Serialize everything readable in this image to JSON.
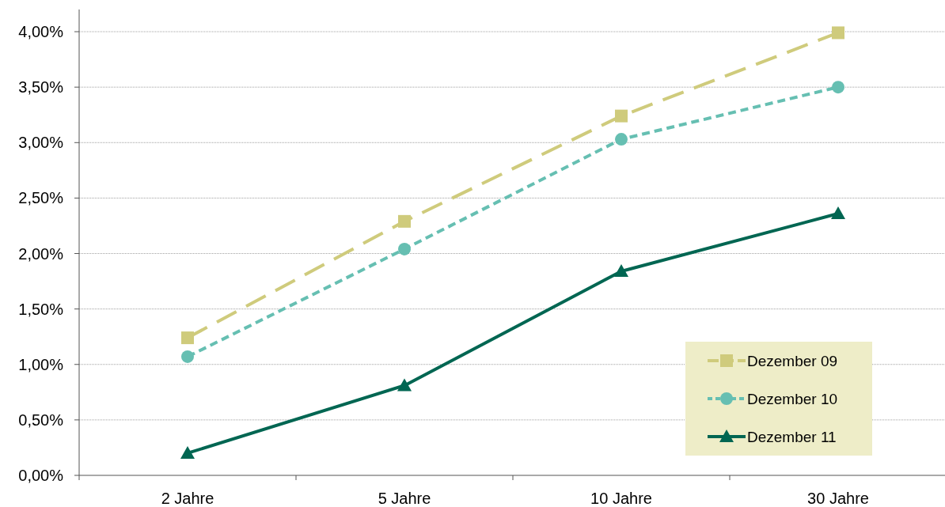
{
  "chart_data": {
    "type": "line",
    "categories": [
      "2 Jahre",
      "5 Jahre",
      "10 Jahre",
      "30 Jahre"
    ],
    "series": [
      {
        "name": "Dezember 09",
        "color": "#cfcb7c",
        "values": [
          1.24,
          2.29,
          3.24,
          3.99
        ],
        "marker": "square",
        "line_style": "dashed"
      },
      {
        "name": "Dezember 10",
        "color": "#66bfb2",
        "values": [
          1.07,
          2.04,
          3.03,
          3.5
        ],
        "marker": "circle",
        "line_style": "dotted"
      },
      {
        "name": "Dezember 11",
        "color": "#006652",
        "values": [
          0.2,
          0.81,
          1.84,
          2.36
        ],
        "marker": "triangle",
        "line_style": "solid"
      }
    ],
    "ylim": [
      0,
      4.2
    ],
    "yticks": [
      {
        "value": 0,
        "label": "0,00%"
      },
      {
        "value": 0.5,
        "label": "0,50%"
      },
      {
        "value": 1,
        "label": "1,00%"
      },
      {
        "value": 1.5,
        "label": "1,50%"
      },
      {
        "value": 2,
        "label": "2,00%"
      },
      {
        "value": 2.5,
        "label": "2,50%"
      },
      {
        "value": 3,
        "label": "3,00%"
      },
      {
        "value": 3.5,
        "label": "3,50%"
      },
      {
        "value": 4,
        "label": "4,00%"
      }
    ],
    "grid": "y",
    "legend": "bottom right"
  }
}
